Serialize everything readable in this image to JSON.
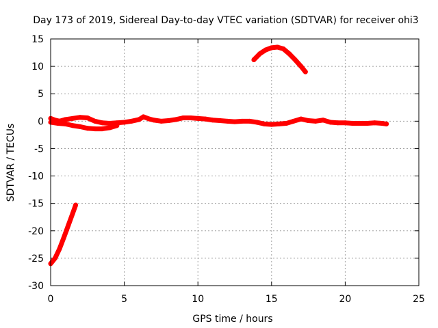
{
  "chart_data": {
    "type": "scatter",
    "title": "Day 173 of 2019, Sidereal Day-to-day VTEC variation (SDTVAR) for receiver ohi3",
    "xlabel": "GPS time / hours",
    "ylabel": "SDTVAR / TECUs",
    "xlim": [
      0,
      25
    ],
    "ylim": [
      -30,
      15
    ],
    "xticks": [
      0,
      5,
      10,
      15,
      20,
      25
    ],
    "yticks": [
      -30,
      -25,
      -20,
      -15,
      -10,
      -5,
      0,
      5,
      10,
      15
    ],
    "grid": true,
    "series_color": "#ff0000",
    "series": [
      {
        "name": "main-trace-upper",
        "x": [
          0.0,
          0.3,
          0.6,
          1.0,
          1.5,
          2.0,
          2.5,
          3.0,
          3.5,
          4.0,
          4.5,
          5.0,
          5.5,
          6.0,
          6.3,
          6.7,
          7.0,
          7.5,
          8.0,
          8.5,
          9.0,
          9.5,
          10.0,
          10.5,
          11.0,
          11.5,
          12.0,
          12.5,
          13.0,
          13.5,
          14.0,
          14.5,
          15.0,
          15.5,
          16.0,
          16.5,
          17.0,
          17.5,
          18.0,
          18.5,
          19.0,
          19.5,
          20.0,
          20.5,
          21.0,
          21.5,
          22.0,
          22.5,
          22.8
        ],
        "y": [
          0.5,
          0.2,
          0.0,
          0.3,
          0.5,
          0.7,
          0.6,
          0.0,
          -0.3,
          -0.4,
          -0.3,
          -0.2,
          0.0,
          0.3,
          0.8,
          0.4,
          0.2,
          0.0,
          0.1,
          0.3,
          0.6,
          0.6,
          0.5,
          0.4,
          0.2,
          0.1,
          0.0,
          -0.1,
          0.0,
          0.0,
          -0.2,
          -0.5,
          -0.6,
          -0.5,
          -0.4,
          0.0,
          0.4,
          0.1,
          0.0,
          0.2,
          -0.2,
          -0.3,
          -0.3,
          -0.4,
          -0.4,
          -0.4,
          -0.3,
          -0.4,
          -0.5
        ]
      },
      {
        "name": "main-trace-lower",
        "x": [
          0.0,
          0.5,
          1.0,
          1.5,
          2.0,
          2.5,
          3.0,
          3.5,
          4.0,
          4.5
        ],
        "y": [
          -0.2,
          -0.4,
          -0.5,
          -0.8,
          -1.0,
          -1.3,
          -1.4,
          -1.4,
          -1.2,
          -0.8
        ]
      },
      {
        "name": "arc-trace",
        "x": [
          13.8,
          14.2,
          14.6,
          15.0,
          15.4,
          15.8,
          16.2,
          16.6,
          17.0,
          17.3
        ],
        "y": [
          11.2,
          12.3,
          13.0,
          13.4,
          13.5,
          13.2,
          12.3,
          11.2,
          10.0,
          9.0
        ]
      },
      {
        "name": "rise-trace",
        "x": [
          0.0,
          0.3,
          0.6,
          0.9,
          1.2,
          1.5,
          1.7
        ],
        "y": [
          -26.0,
          -25.0,
          -23.3,
          -21.2,
          -19.0,
          -16.8,
          -15.3
        ]
      }
    ]
  }
}
